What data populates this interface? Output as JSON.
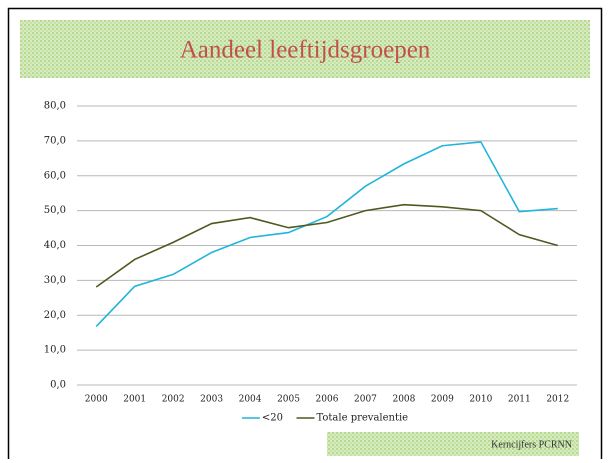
{
  "chart_data": {
    "type": "line",
    "title": "Aandeel leeftijdsgroepen",
    "categories": [
      "2000",
      "2001",
      "2002",
      "2003",
      "2004",
      "2005",
      "2006",
      "2007",
      "2008",
      "2009",
      "2010",
      "2011",
      "2012"
    ],
    "series": [
      {
        "name": "<20",
        "color": "#22b4dc",
        "values": [
          16.8,
          28.3,
          31.7,
          38.0,
          42.3,
          43.7,
          48.3,
          57.0,
          63.4,
          68.6,
          69.7,
          49.7,
          50.6
        ]
      },
      {
        "name": "Totale prevalentie",
        "color": "#4f5a21",
        "values": [
          28.1,
          36.0,
          40.9,
          46.3,
          48.0,
          45.1,
          46.6,
          50.0,
          51.7,
          51.1,
          50.0,
          43.1,
          40.0
        ]
      }
    ],
    "ylim": [
      0,
      80
    ],
    "yticks": [
      {
        "value": 0,
        "label": "0,0"
      },
      {
        "value": 10,
        "label": "10,0"
      },
      {
        "value": 20,
        "label": "20,0"
      },
      {
        "value": 30,
        "label": "30,0"
      },
      {
        "value": 40,
        "label": "40,0"
      },
      {
        "value": 50,
        "label": "50,0"
      },
      {
        "value": 60,
        "label": "60,0"
      },
      {
        "value": 70,
        "label": "70,0"
      },
      {
        "value": 80,
        "label": "80,0"
      }
    ],
    "grid": true,
    "legend": "bottom"
  },
  "footer": "Kerncijfers PCRNN"
}
